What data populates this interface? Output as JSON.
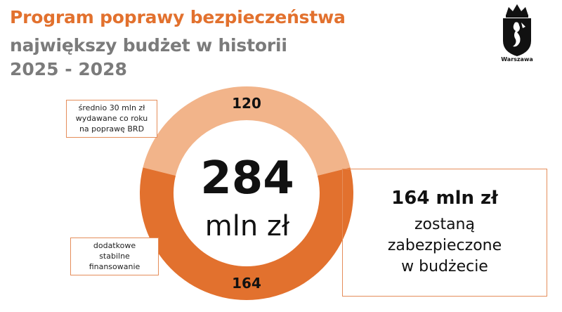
{
  "header": {
    "title_line1": "Program poprawy bezpieczeństwa",
    "title_line2": "największy budżet w historii",
    "title_line3": "2025 - 2028"
  },
  "logo": {
    "label": "Warszawa"
  },
  "chart_data": {
    "type": "pie",
    "donut": true,
    "total": 284,
    "unit": "mln zł",
    "slices": [
      {
        "label": "120",
        "value": 120,
        "color": "#f2b48a"
      },
      {
        "label": "164",
        "value": 164,
        "color": "#e2712e"
      }
    ],
    "center_value": "284",
    "center_unit": "mln zł"
  },
  "callouts": {
    "top": [
      "średnio 30 mln zł",
      "wydawane co roku",
      "na poprawę BRD"
    ],
    "bottom": [
      "dodatkowe",
      "stabilne",
      "finansowanie"
    ]
  },
  "summary_box": {
    "headline": "164 mln zł",
    "lines": [
      "zostaną",
      "zabezpieczone",
      "w budżecie"
    ]
  }
}
